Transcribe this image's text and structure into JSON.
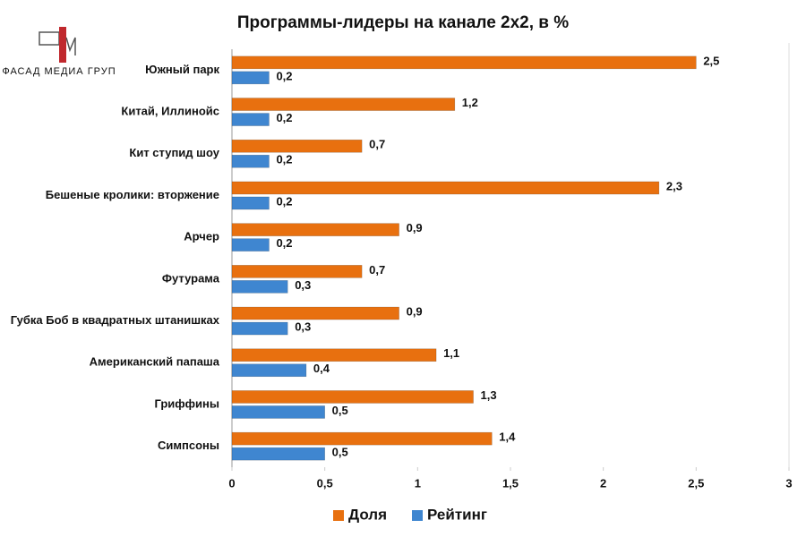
{
  "logo": {
    "text": "ФАСАД МЕДИА ГРУП"
  },
  "chart_data": {
    "type": "bar",
    "orientation": "horizontal",
    "title": "Программы-лидеры на канале 2х2, в %",
    "categories": [
      "Южный парк",
      "Китай, Иллинойс",
      "Кит ступид шоу",
      "Бешеные кролики: вторжение",
      "Арчер",
      "Футурама",
      "Губка Боб в квадратных штанишках",
      "Американский папаша",
      "Гриффины",
      "Симпсоны"
    ],
    "series": [
      {
        "name": "Доля",
        "color": "#e8700f",
        "values": [
          2.5,
          1.2,
          0.7,
          2.3,
          0.9,
          0.7,
          0.9,
          1.1,
          1.3,
          1.4
        ],
        "value_labels": [
          "2,5",
          "1,2",
          "0,7",
          "2,3",
          "0,9",
          "0,7",
          "0,9",
          "1,1",
          "1,3",
          "1,4"
        ]
      },
      {
        "name": "Рейтинг",
        "color": "#3f86d0",
        "values": [
          0.2,
          0.2,
          0.2,
          0.2,
          0.2,
          0.3,
          0.3,
          0.4,
          0.5,
          0.5
        ],
        "value_labels": [
          "0,2",
          "0,2",
          "0,2",
          "0,2",
          "0,2",
          "0,3",
          "0,3",
          "0,4",
          "0,5",
          "0,5"
        ]
      }
    ],
    "xlim": [
      0,
      3
    ],
    "xticks": [
      0,
      {
        "value": 0.5,
        "label": "0,5"
      },
      1,
      {
        "value": 1.5,
        "label": "1,5"
      },
      2,
      {
        "value": 2.5,
        "label": "2,5"
      },
      3
    ],
    "legend": "bottom",
    "grid": false
  }
}
